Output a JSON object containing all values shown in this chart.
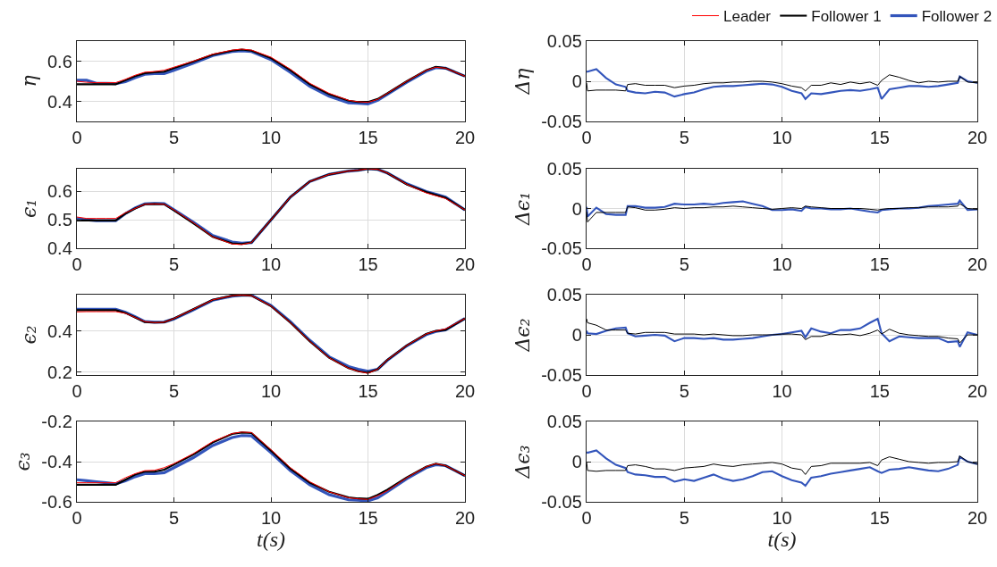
{
  "chart_data": [
    {
      "type": "line",
      "ylabel": "η",
      "legend": "top right",
      "grid": true,
      "xlim": [
        0,
        20
      ],
      "xticks": [
        0,
        5,
        10,
        15,
        20
      ],
      "ylim": [
        0.3,
        0.7
      ],
      "yticks": [
        0.4,
        0.6
      ],
      "x": [
        0,
        0.5,
        1,
        1.5,
        2,
        2.5,
        3,
        3.5,
        4,
        4.5,
        5,
        6,
        7,
        8,
        8.5,
        9,
        10,
        11,
        12,
        13,
        14,
        14.5,
        15,
        15.5,
        16,
        17,
        18,
        18.5,
        19,
        20
      ],
      "series": [
        {
          "name": "Leader",
          "color": "#ff0000",
          "values": [
            0.5,
            0.495,
            0.493,
            0.493,
            0.493,
            0.51,
            0.53,
            0.545,
            0.548,
            0.555,
            0.57,
            0.6,
            0.635,
            0.655,
            0.66,
            0.655,
            0.62,
            0.56,
            0.49,
            0.44,
            0.405,
            0.398,
            0.395,
            0.41,
            0.44,
            0.5,
            0.555,
            0.57,
            0.565,
            0.525
          ]
        },
        {
          "name": "Follower 1",
          "color": "#000000",
          "values": [
            0.485,
            0.485,
            0.485,
            0.485,
            0.485,
            0.505,
            0.525,
            0.54,
            0.545,
            0.548,
            0.565,
            0.598,
            0.632,
            0.652,
            0.658,
            0.652,
            0.615,
            0.555,
            0.485,
            0.435,
            0.403,
            0.397,
            0.397,
            0.412,
            0.44,
            0.5,
            0.555,
            0.572,
            0.565,
            0.525
          ]
        },
        {
          "name": "Follower 2",
          "color": "#3355bb",
          "values": [
            0.505,
            0.505,
            0.49,
            0.49,
            0.488,
            0.498,
            0.518,
            0.535,
            0.538,
            0.538,
            0.555,
            0.59,
            0.628,
            0.648,
            0.652,
            0.648,
            0.608,
            0.545,
            0.475,
            0.425,
            0.393,
            0.39,
            0.387,
            0.405,
            0.435,
            0.495,
            0.55,
            0.568,
            0.565,
            0.525
          ]
        }
      ]
    },
    {
      "type": "line",
      "ylabel": "Δη",
      "grid": true,
      "xlim": [
        0,
        20
      ],
      "xticks": [
        0,
        5,
        10,
        15,
        20
      ],
      "ylim": [
        -0.05,
        0.05
      ],
      "yticks": [
        -0.05,
        0,
        0.05
      ],
      "x": [
        0,
        0.05,
        0.5,
        1,
        1.5,
        2,
        2.1,
        2.5,
        3,
        3.5,
        4,
        4.5,
        5,
        5.5,
        6,
        6.5,
        7,
        7.5,
        8,
        8.5,
        9,
        9.5,
        10,
        10.5,
        11,
        11.2,
        11.5,
        12,
        12.5,
        13,
        13.5,
        14,
        14.5,
        14.9,
        15.1,
        15.5,
        16,
        16.5,
        17,
        17.5,
        18,
        18.5,
        19,
        19.1,
        19.5,
        20
      ],
      "series": [
        {
          "color": "#000000",
          "values": [
            -0.002,
            -0.012,
            -0.011,
            -0.011,
            -0.011,
            -0.012,
            -0.004,
            -0.003,
            -0.005,
            -0.005,
            -0.005,
            -0.008,
            -0.006,
            -0.005,
            -0.003,
            -0.002,
            -0.002,
            -0.001,
            -0.001,
            0,
            0,
            -0.001,
            -0.003,
            -0.006,
            -0.008,
            -0.012,
            -0.005,
            -0.005,
            -0.002,
            -0.004,
            -0.001,
            -0.003,
            -0.001,
            -0.005,
            0.001,
            0.008,
            0.005,
            0.001,
            -0.002,
            0,
            -0.001,
            0,
            0,
            0.006,
            -0.001,
            -0.002
          ]
        },
        {
          "color": "#3355bb",
          "values": [
            0.012,
            0.012,
            0.015,
            0.004,
            -0.004,
            -0.007,
            -0.012,
            -0.014,
            -0.015,
            -0.013,
            -0.014,
            -0.019,
            -0.016,
            -0.014,
            -0.01,
            -0.007,
            -0.006,
            -0.006,
            -0.005,
            -0.004,
            -0.003,
            -0.004,
            -0.007,
            -0.012,
            -0.015,
            -0.022,
            -0.015,
            -0.016,
            -0.014,
            -0.012,
            -0.011,
            -0.012,
            -0.01,
            -0.008,
            -0.022,
            -0.01,
            -0.008,
            -0.006,
            -0.006,
            -0.007,
            -0.006,
            -0.004,
            -0.002,
            0.006,
            0,
            -0.002
          ]
        }
      ]
    },
    {
      "type": "line",
      "ylabel": "ϵ₁",
      "grid": true,
      "xlim": [
        0,
        20
      ],
      "xticks": [
        0,
        5,
        10,
        15,
        20
      ],
      "ylim": [
        0.4,
        0.68
      ],
      "yticks": [
        0.4,
        0.5,
        0.6
      ],
      "x": [
        0,
        0.5,
        1,
        1.5,
        2,
        2.5,
        3,
        3.5,
        4,
        4.5,
        5,
        6,
        7,
        8,
        8.5,
        9,
        10,
        11,
        12,
        13,
        14,
        14.5,
        15,
        15.5,
        16,
        17,
        18,
        18.5,
        19,
        20
      ],
      "series": [
        {
          "color": "#ff0000",
          "values": [
            0.51,
            0.505,
            0.505,
            0.505,
            0.505,
            0.525,
            0.54,
            0.555,
            0.556,
            0.555,
            0.535,
            0.49,
            0.44,
            0.415,
            0.413,
            0.42,
            0.5,
            0.58,
            0.635,
            0.66,
            0.672,
            0.675,
            0.68,
            0.678,
            0.665,
            0.625,
            0.595,
            0.585,
            0.575,
            0.535
          ]
        },
        {
          "color": "#000000",
          "values": [
            0.498,
            0.498,
            0.498,
            0.498,
            0.498,
            0.522,
            0.54,
            0.555,
            0.556,
            0.555,
            0.533,
            0.488,
            0.44,
            0.417,
            0.415,
            0.42,
            0.5,
            0.58,
            0.635,
            0.66,
            0.672,
            0.675,
            0.68,
            0.678,
            0.665,
            0.625,
            0.598,
            0.588,
            0.578,
            0.535
          ]
        },
        {
          "color": "#3355bb",
          "values": [
            0.505,
            0.5,
            0.497,
            0.497,
            0.497,
            0.522,
            0.542,
            0.556,
            0.558,
            0.557,
            0.536,
            0.492,
            0.445,
            0.422,
            0.418,
            0.42,
            0.5,
            0.58,
            0.635,
            0.66,
            0.672,
            0.675,
            0.68,
            0.678,
            0.665,
            0.627,
            0.6,
            0.59,
            0.58,
            0.535
          ]
        }
      ]
    },
    {
      "type": "line",
      "ylabel": "Δϵ₁",
      "grid": true,
      "xlim": [
        0,
        20
      ],
      "xticks": [
        0,
        5,
        10,
        15,
        20
      ],
      "ylim": [
        -0.05,
        0.05
      ],
      "yticks": [
        -0.05,
        0,
        0.05
      ],
      "x": [
        0,
        0.05,
        0.5,
        1,
        1.5,
        2,
        2.1,
        2.5,
        3,
        3.5,
        4,
        4.5,
        5,
        5.5,
        6,
        6.5,
        7,
        7.5,
        8,
        8.5,
        9,
        9.5,
        10,
        10.5,
        11,
        11.2,
        11.5,
        12,
        12.5,
        13,
        13.5,
        14,
        14.5,
        14.9,
        15.1,
        15.5,
        16,
        16.5,
        17,
        17.5,
        18,
        18.5,
        19,
        19.1,
        19.5,
        20
      ],
      "series": [
        {
          "color": "#000000",
          "values": [
            -0.004,
            -0.017,
            -0.005,
            -0.005,
            -0.005,
            -0.005,
            0.002,
            0.001,
            -0.002,
            -0.002,
            -0.001,
            0.001,
            0,
            0.001,
            0.001,
            0.002,
            0.002,
            0.003,
            0.002,
            0.001,
            0,
            -0.001,
            0,
            0.001,
            0,
            0.003,
            0.002,
            0.001,
            0,
            0,
            0,
            0,
            -0.001,
            -0.002,
            -0.001,
            0,
            0,
            0.001,
            0.001,
            0.002,
            0.002,
            0.002,
            0.003,
            0.006,
            0,
            -0.001
          ]
        },
        {
          "color": "#3355bb",
          "values": [
            0.002,
            -0.01,
            0.001,
            -0.007,
            -0.008,
            -0.008,
            0.003,
            0.003,
            0.001,
            0.001,
            0.002,
            0.006,
            0.005,
            0.005,
            0.006,
            0.005,
            0.007,
            0.008,
            0.009,
            0.006,
            0.003,
            -0.002,
            -0.002,
            -0.001,
            -0.003,
            0.002,
            0,
            0,
            -0.001,
            -0.001,
            0,
            -0.002,
            -0.004,
            -0.005,
            -0.002,
            -0.001,
            0,
            0,
            0.001,
            0.003,
            0.004,
            0.005,
            0.006,
            0.01,
            -0.002,
            -0.001
          ]
        }
      ]
    },
    {
      "type": "line",
      "ylabel": "ϵ₂",
      "grid": true,
      "xlim": [
        0,
        20
      ],
      "xticks": [
        0,
        5,
        10,
        15,
        20
      ],
      "ylim": [
        0.187,
        0.575
      ],
      "yticks": [
        0.2,
        0.4
      ],
      "x": [
        0,
        0.5,
        1,
        1.5,
        2,
        2.5,
        3,
        3.5,
        4,
        4.5,
        5,
        6,
        7,
        8,
        8.5,
        9,
        10,
        11,
        12,
        13,
        14,
        14.5,
        15,
        15.5,
        16,
        17,
        18,
        18.5,
        19,
        20
      ],
      "series": [
        {
          "color": "#ff0000",
          "values": [
            0.492,
            0.493,
            0.493,
            0.493,
            0.493,
            0.485,
            0.465,
            0.445,
            0.44,
            0.442,
            0.46,
            0.505,
            0.55,
            0.57,
            0.573,
            0.57,
            0.52,
            0.44,
            0.35,
            0.27,
            0.22,
            0.205,
            0.195,
            0.215,
            0.26,
            0.33,
            0.385,
            0.4,
            0.41,
            0.46
          ]
        },
        {
          "color": "#000000",
          "values": [
            0.5,
            0.5,
            0.5,
            0.5,
            0.5,
            0.487,
            0.465,
            0.443,
            0.44,
            0.442,
            0.46,
            0.505,
            0.55,
            0.57,
            0.573,
            0.57,
            0.52,
            0.44,
            0.35,
            0.27,
            0.22,
            0.205,
            0.198,
            0.215,
            0.26,
            0.33,
            0.385,
            0.4,
            0.405,
            0.46
          ]
        },
        {
          "color": "#3355bb",
          "values": [
            0.505,
            0.505,
            0.505,
            0.505,
            0.505,
            0.49,
            0.468,
            0.445,
            0.442,
            0.443,
            0.458,
            0.502,
            0.548,
            0.568,
            0.572,
            0.572,
            0.523,
            0.445,
            0.355,
            0.275,
            0.228,
            0.215,
            0.205,
            0.215,
            0.258,
            0.328,
            0.382,
            0.397,
            0.405,
            0.46
          ]
        }
      ]
    },
    {
      "type": "line",
      "ylabel": "Δϵ₂",
      "grid": true,
      "xlim": [
        0,
        20
      ],
      "xticks": [
        0,
        5,
        10,
        15,
        20
      ],
      "ylim": [
        -0.05,
        0.05
      ],
      "yticks": [
        -0.05,
        0,
        0.05
      ],
      "x": [
        0,
        0.05,
        0.5,
        1,
        1.5,
        2,
        2.1,
        2.5,
        3,
        3.5,
        4,
        4.5,
        5,
        5.5,
        6,
        6.5,
        7,
        7.5,
        8,
        8.5,
        9,
        9.5,
        10,
        10.5,
        11,
        11.2,
        11.5,
        12,
        12.5,
        13,
        13.5,
        14,
        14.5,
        14.9,
        15.1,
        15.5,
        16,
        16.5,
        17,
        17.5,
        18,
        18.5,
        19,
        19.1,
        19.5,
        20
      ],
      "series": [
        {
          "color": "#000000",
          "values": [
            0.02,
            0.015,
            0.012,
            0.006,
            0.006,
            0.006,
            0.002,
            0.001,
            0.003,
            0.003,
            0.003,
            0.001,
            0.001,
            0.001,
            0,
            0.001,
            0,
            -0.001,
            -0.001,
            0,
            0,
            0,
            0.001,
            0.001,
            0,
            -0.006,
            -0.002,
            -0.002,
            0.001,
            0,
            0.001,
            -0.001,
            0.002,
            0.006,
            0.001,
            0.007,
            0.002,
            0,
            -0.001,
            -0.002,
            -0.002,
            -0.004,
            -0.005,
            -0.01,
            0,
            0
          ]
        },
        {
          "color": "#3355bb",
          "values": [
            0.005,
            0.002,
            0.001,
            0.005,
            0.008,
            0.009,
            0.002,
            -0.002,
            -0.001,
            0,
            -0.001,
            -0.008,
            -0.004,
            -0.004,
            -0.005,
            -0.004,
            -0.006,
            -0.006,
            -0.005,
            -0.004,
            -0.002,
            0,
            0.001,
            0.003,
            0.005,
            -0.003,
            0.008,
            0.004,
            0.002,
            0.006,
            0.006,
            0.008,
            0.015,
            0.02,
            0.002,
            -0.008,
            -0.002,
            -0.003,
            -0.004,
            -0.004,
            -0.004,
            -0.009,
            -0.008,
            -0.015,
            0.003,
            0
          ]
        }
      ]
    },
    {
      "type": "line",
      "ylabel": "ϵ₃",
      "xlabel": "t(s)",
      "grid": true,
      "xlim": [
        0,
        20
      ],
      "xticks": [
        0,
        5,
        10,
        15,
        20
      ],
      "ylim": [
        -0.6,
        -0.2
      ],
      "yticks": [
        -0.6,
        -0.4,
        -0.2
      ],
      "x": [
        0,
        0.5,
        1,
        1.5,
        2,
        2.5,
        3,
        3.5,
        4,
        4.5,
        5,
        6,
        7,
        8,
        8.5,
        9,
        10,
        11,
        12,
        13,
        14,
        14.5,
        15,
        15.5,
        16,
        17,
        18,
        18.5,
        19,
        20
      ],
      "series": [
        {
          "color": "#ff0000",
          "values": [
            -0.505,
            -0.505,
            -0.505,
            -0.505,
            -0.505,
            -0.48,
            -0.46,
            -0.445,
            -0.443,
            -0.43,
            -0.41,
            -0.36,
            -0.3,
            -0.26,
            -0.253,
            -0.255,
            -0.34,
            -0.43,
            -0.5,
            -0.55,
            -0.58,
            -0.585,
            -0.588,
            -0.57,
            -0.545,
            -0.48,
            -0.425,
            -0.41,
            -0.42,
            -0.47
          ]
        },
        {
          "color": "#000000",
          "values": [
            -0.515,
            -0.515,
            -0.515,
            -0.515,
            -0.515,
            -0.49,
            -0.465,
            -0.45,
            -0.45,
            -0.44,
            -0.415,
            -0.365,
            -0.305,
            -0.262,
            -0.255,
            -0.258,
            -0.345,
            -0.435,
            -0.505,
            -0.55,
            -0.578,
            -0.583,
            -0.585,
            -0.565,
            -0.54,
            -0.478,
            -0.425,
            -0.41,
            -0.42,
            -0.47
          ]
        },
        {
          "color": "#3355bb",
          "values": [
            -0.49,
            -0.495,
            -0.5,
            -0.505,
            -0.51,
            -0.495,
            -0.475,
            -0.46,
            -0.46,
            -0.455,
            -0.43,
            -0.38,
            -0.32,
            -0.28,
            -0.27,
            -0.272,
            -0.355,
            -0.445,
            -0.515,
            -0.565,
            -0.59,
            -0.592,
            -0.595,
            -0.58,
            -0.55,
            -0.485,
            -0.43,
            -0.415,
            -0.42,
            -0.47
          ]
        }
      ]
    },
    {
      "type": "line",
      "ylabel": "Δϵ₃",
      "xlabel": "t(s)",
      "grid": true,
      "xlim": [
        0,
        20
      ],
      "xticks": [
        0,
        5,
        10,
        15,
        20
      ],
      "ylim": [
        -0.05,
        0.05
      ],
      "yticks": [
        -0.05,
        0,
        0.05
      ],
      "x": [
        0,
        0.05,
        0.5,
        1,
        1.5,
        2,
        2.1,
        2.5,
        3,
        3.5,
        4,
        4.5,
        5,
        5.5,
        6,
        6.5,
        7,
        7.5,
        8,
        8.5,
        9,
        9.5,
        10,
        10.5,
        11,
        11.2,
        11.5,
        12,
        12.5,
        13,
        13.5,
        14,
        14.5,
        14.9,
        15.1,
        15.5,
        16,
        16.5,
        17,
        17.5,
        18,
        18.5,
        19,
        19.1,
        19.5,
        20
      ],
      "series": [
        {
          "color": "#000000",
          "values": [
            0,
            -0.011,
            -0.012,
            -0.011,
            -0.011,
            -0.011,
            -0.005,
            -0.004,
            -0.006,
            -0.009,
            -0.009,
            -0.011,
            -0.008,
            -0.007,
            -0.006,
            -0.003,
            -0.005,
            -0.006,
            -0.004,
            -0.003,
            -0.002,
            -0.001,
            -0.003,
            -0.008,
            -0.01,
            -0.016,
            -0.006,
            -0.005,
            -0.002,
            -0.002,
            -0.002,
            -0.002,
            -0.001,
            -0.005,
            0.002,
            0.006,
            0.003,
            0,
            -0.001,
            -0.002,
            -0.001,
            -0.001,
            0,
            0.007,
            0,
            -0.003
          ]
        },
        {
          "color": "#3355bb",
          "values": [
            0.012,
            0.011,
            0.014,
            0.004,
            -0.004,
            -0.008,
            -0.013,
            -0.016,
            -0.017,
            -0.019,
            -0.019,
            -0.025,
            -0.022,
            -0.024,
            -0.02,
            -0.016,
            -0.021,
            -0.024,
            -0.022,
            -0.018,
            -0.013,
            -0.012,
            -0.018,
            -0.023,
            -0.026,
            -0.03,
            -0.02,
            -0.018,
            -0.015,
            -0.013,
            -0.011,
            -0.009,
            -0.007,
            -0.012,
            -0.014,
            -0.01,
            -0.009,
            -0.007,
            -0.009,
            -0.011,
            -0.012,
            -0.009,
            -0.004,
            0.006,
            0,
            -0.003
          ]
        }
      ]
    }
  ]
}
